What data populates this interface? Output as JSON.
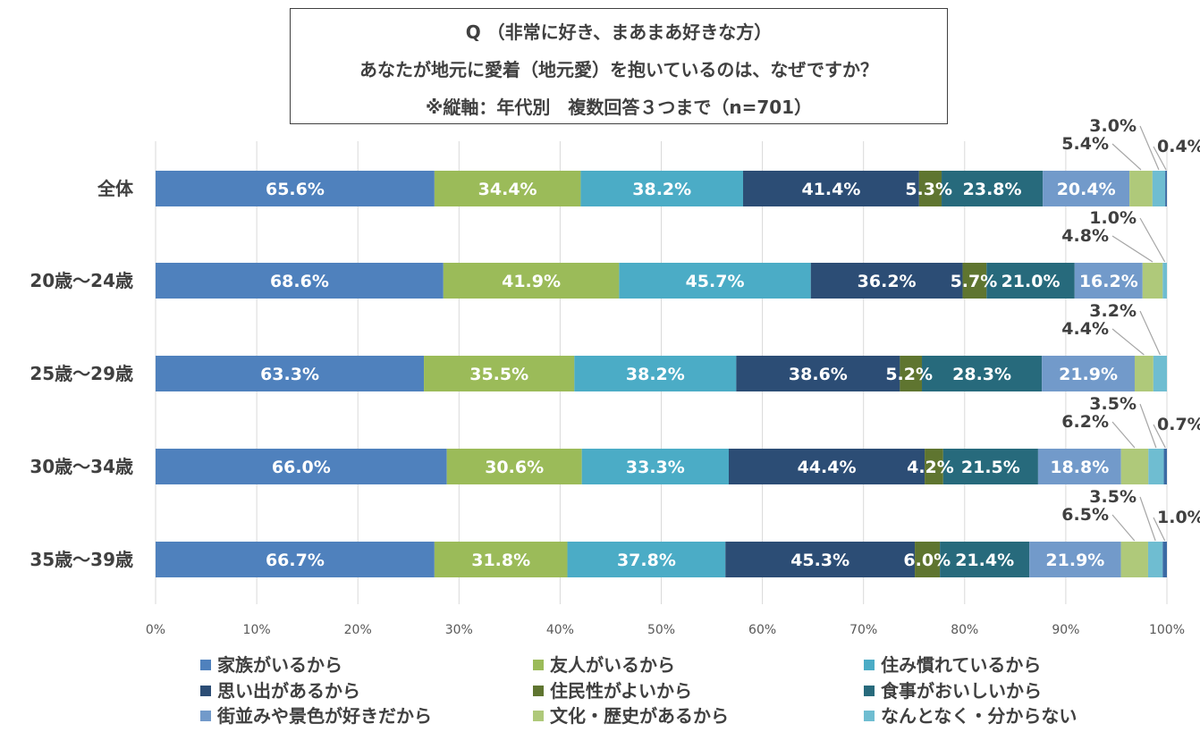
{
  "chart_data": {
    "type": "bar",
    "orientation": "horizontal",
    "stacked": "percent",
    "title_lines": [
      "Q （非常に好き、まあまあ好きな方）",
      "あなたが地元に愛着（地元愛）を抱いているのは、なぜですか？",
      "※縦軸：年代別　複数回答３つまで（n=701）"
    ],
    "categories": [
      "全体",
      "20歳〜24歳",
      "25歳〜29歳",
      "30歳〜34歳",
      "35歳〜39歳"
    ],
    "x_ticks": [
      "0%",
      "10%",
      "20%",
      "30%",
      "40%",
      "50%",
      "60%",
      "70%",
      "80%",
      "90%",
      "100%"
    ],
    "xlim": [
      0,
      100
    ],
    "grid": "vertical",
    "legend_position": "bottom",
    "series": [
      {
        "name": "家族がいるから",
        "color": "#4F81BD",
        "values": [
          65.6,
          68.6,
          63.3,
          66.0,
          66.7
        ],
        "labels": [
          "65.6%",
          "68.6%",
          "63.3%",
          "66.0%",
          "66.7%"
        ]
      },
      {
        "name": "友人がいるから",
        "color": "#9BBB59",
        "values": [
          34.4,
          41.9,
          35.5,
          30.6,
          31.8
        ],
        "labels": [
          "34.4%",
          "41.9%",
          "35.5%",
          "30.6%",
          "31.8%"
        ]
      },
      {
        "name": "住み慣れているから",
        "color": "#4BACC6",
        "values": [
          38.2,
          45.7,
          38.2,
          33.3,
          37.8
        ],
        "labels": [
          "38.2%",
          "45.7%",
          "38.2%",
          "33.3%",
          "37.8%"
        ]
      },
      {
        "name": "思い出があるから",
        "color": "#2C4D75",
        "values": [
          41.4,
          36.2,
          38.6,
          44.4,
          45.3
        ],
        "labels": [
          "41.4%",
          "36.2%",
          "38.6%",
          "44.4%",
          "45.3%"
        ]
      },
      {
        "name": "住民性がよいから",
        "color": "#5F7530",
        "values": [
          5.3,
          5.7,
          5.2,
          4.2,
          6.0
        ],
        "labels": [
          "5.3%",
          "5.7%",
          "5.2%",
          "4.2%",
          "6.0%"
        ]
      },
      {
        "name": "食事がおいしいから",
        "color": "#276A7C",
        "values": [
          23.8,
          21.0,
          28.3,
          21.5,
          21.4
        ],
        "labels": [
          "23.8%",
          "21.0%",
          "28.3%",
          "21.5%",
          "21.4%"
        ]
      },
      {
        "name": "街並みや景色が好きだから",
        "color": "#729ACA",
        "values": [
          20.4,
          16.2,
          21.9,
          18.8,
          21.9
        ],
        "labels": [
          "20.4%",
          "16.2%",
          "21.9%",
          "18.8%",
          "21.9%"
        ]
      },
      {
        "name": "文化・歴史があるから",
        "color": "#AFC97A",
        "values": [
          5.4,
          4.8,
          4.4,
          6.2,
          6.5
        ],
        "labels": [
          "5.4%",
          "4.8%",
          "4.4%",
          "6.2%",
          "6.5%"
        ]
      },
      {
        "name": "なんとなく・分からない",
        "color": "#6FBDD1",
        "values": [
          3.0,
          1.0,
          3.2,
          3.5,
          3.5
        ],
        "labels": [
          "3.0%",
          "1.0%",
          "3.2%",
          "3.5%",
          "3.5%"
        ]
      },
      {
        "name": "",
        "color": "#3C6BA4",
        "values": [
          0.4,
          0,
          0,
          0.7,
          1.0
        ],
        "labels": [
          "0.4%",
          "",
          "",
          "0.7%",
          "1.0%"
        ]
      }
    ]
  }
}
